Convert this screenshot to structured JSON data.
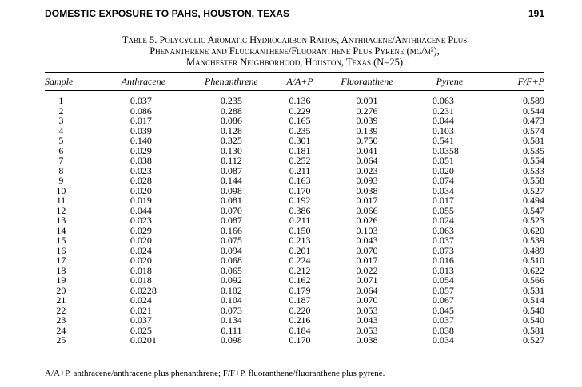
{
  "running_head": {
    "title": "DOMESTIC EXPOSURE TO PAHS, HOUSTON, TEXAS",
    "page_number": "191"
  },
  "caption": {
    "line1": "Table 5. Polycyclic Aromatic Hydrocarbon Ratios, Anthracene/Anthracene Plus",
    "line2": "Phenanthrene and Fluoranthene/Fluoranthene Plus Pyrene (µg/m²),",
    "line3": "Manchester Neighborhood, Houston, Texas (N=25)"
  },
  "table": {
    "headers": [
      "Sample",
      "Anthracene",
      "Phenanthrene",
      "A/A+P",
      "Fluoranthene",
      "Pyrene",
      "F/F+P"
    ],
    "rows": [
      [
        "1",
        "0.037",
        "0.235",
        "0.136",
        "0.091",
        "0.063",
        "0.589"
      ],
      [
        "2",
        "0.086",
        "0.288",
        "0.229",
        "0.276",
        "0.231",
        "0.544"
      ],
      [
        "3",
        "0.017",
        "0.086",
        "0.165",
        "0.039",
        "0.044",
        "0.473"
      ],
      [
        "4",
        "0.039",
        "0.128",
        "0.235",
        "0.139",
        "0.103",
        "0.574"
      ],
      [
        "5",
        "0.140",
        "0.325",
        "0.301",
        "0.750",
        "0.541",
        "0.581"
      ],
      [
        "6",
        "0.029",
        "0.130",
        "0.181",
        "0.041",
        "0.0358",
        "0.535"
      ],
      [
        "7",
        "0.038",
        "0.112",
        "0.252",
        "0.064",
        "0.051",
        "0.554"
      ],
      [
        "8",
        "0.023",
        "0.087",
        "0.211",
        "0.023",
        "0.020",
        "0.533"
      ],
      [
        "9",
        "0.028",
        "0.144",
        "0.163",
        "0.093",
        "0.074",
        "0.558"
      ],
      [
        "10",
        "0.020",
        "0.098",
        "0.170",
        "0.038",
        "0.034",
        "0.527"
      ],
      [
        "11",
        "0.019",
        "0.081",
        "0.192",
        "0.017",
        "0.017",
        "0.494"
      ],
      [
        "12",
        "0.044",
        "0.070",
        "0.386",
        "0.066",
        "0.055",
        "0.547"
      ],
      [
        "13",
        "0.023",
        "0.087",
        "0.211",
        "0.026",
        "0.024",
        "0.523"
      ],
      [
        "14",
        "0.029",
        "0.166",
        "0.150",
        "0.103",
        "0.063",
        "0.620"
      ],
      [
        "15",
        "0.020",
        "0.075",
        "0.213",
        "0.043",
        "0.037",
        "0.539"
      ],
      [
        "16",
        "0.024",
        "0.094",
        "0.201",
        "0.070",
        "0.073",
        "0.489"
      ],
      [
        "17",
        "0.020",
        "0.068",
        "0.224",
        "0.017",
        "0.016",
        "0.510"
      ],
      [
        "18",
        "0.018",
        "0.065",
        "0.212",
        "0.022",
        "0.013",
        "0.622"
      ],
      [
        "19",
        "0.018",
        "0.092",
        "0.162",
        "0.071",
        "0.054",
        "0.566"
      ],
      [
        "20",
        "0.0228",
        "0.102",
        "0.179",
        "0.064",
        "0.057",
        "0.531"
      ],
      [
        "21",
        "0.024",
        "0.104",
        "0.187",
        "0.070",
        "0.067",
        "0.514"
      ],
      [
        "22",
        "0.021",
        "0.073",
        "0.220",
        "0.053",
        "0.045",
        "0.540"
      ],
      [
        "23",
        "0.037",
        "0.134",
        "0.216",
        "0.043",
        "0.037",
        "0.540"
      ],
      [
        "24",
        "0.025",
        "0.111",
        "0.184",
        "0.053",
        "0.038",
        "0.581"
      ],
      [
        "25",
        "0.0201",
        "0.098",
        "0.170",
        "0.038",
        "0.034",
        "0.527"
      ]
    ]
  },
  "footnote": "A/A+P, anthracene/anthracene plus phenanthrene; F/F+P, fluoranthene/fluoranthene plus pyrene."
}
